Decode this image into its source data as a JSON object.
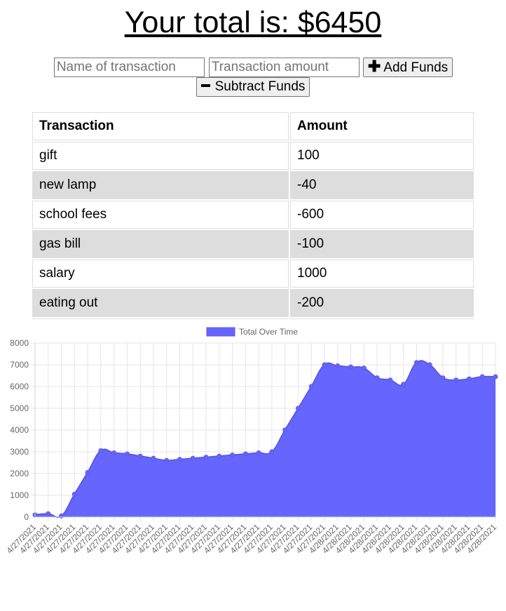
{
  "total": {
    "text": "Your total is: $6450"
  },
  "form": {
    "name_placeholder": "Name of transaction",
    "amount_placeholder": "Transaction amount",
    "add_label": "Add Funds",
    "subtract_label": "Subtract Funds"
  },
  "table": {
    "headers": [
      "Transaction",
      "Amount"
    ],
    "rows": [
      {
        "name": "gift",
        "amount": "100"
      },
      {
        "name": "new lamp",
        "amount": "-40"
      },
      {
        "name": "school fees",
        "amount": "-600"
      },
      {
        "name": "gas bill",
        "amount": "-100"
      },
      {
        "name": "salary",
        "amount": "1000"
      },
      {
        "name": "eating out",
        "amount": "-200"
      }
    ]
  },
  "chart_data": {
    "type": "area",
    "legend": "Total Over Time",
    "legend_position": "top",
    "colors": {
      "fill": "#6666ff",
      "line": "#5a5ae6",
      "grid": "#e5e5e5"
    },
    "grid": true,
    "ylim": [
      0,
      8000
    ],
    "yticks": [
      0,
      1000,
      2000,
      3000,
      4000,
      5000,
      6000,
      7000,
      8000
    ],
    "x": [
      "4/27/2021",
      "4/27/2021",
      "4/27/2021",
      "4/27/2021",
      "4/27/2021",
      "4/27/2021",
      "4/27/2021",
      "4/27/2021",
      "4/27/2021",
      "4/27/2021",
      "4/27/2021",
      "4/27/2021",
      "4/27/2021",
      "4/27/2021",
      "4/27/2021",
      "4/27/2021",
      "4/27/2021",
      "4/27/2021",
      "4/27/2021",
      "4/27/2021",
      "4/27/2021",
      "4/27/2021",
      "4/27/2021",
      "4/28/2021",
      "4/28/2021",
      "4/28/2021",
      "4/28/2021",
      "4/28/2021",
      "4/28/2021",
      "4/28/2021",
      "4/28/2021",
      "4/28/2021",
      "4/28/2021",
      "4/28/2021",
      "4/28/2021",
      "4/28/2021"
    ],
    "values": [
      100,
      150,
      50,
      1050,
      2050,
      3050,
      2950,
      2900,
      2800,
      2700,
      2600,
      2650,
      2700,
      2750,
      2800,
      2850,
      2900,
      2950,
      3000,
      4000,
      5000,
      6000,
      7000,
      6950,
      6900,
      6850,
      6400,
      6300,
      6100,
      7100,
      7000,
      6400,
      6300,
      6350,
      6450,
      6450
    ]
  }
}
